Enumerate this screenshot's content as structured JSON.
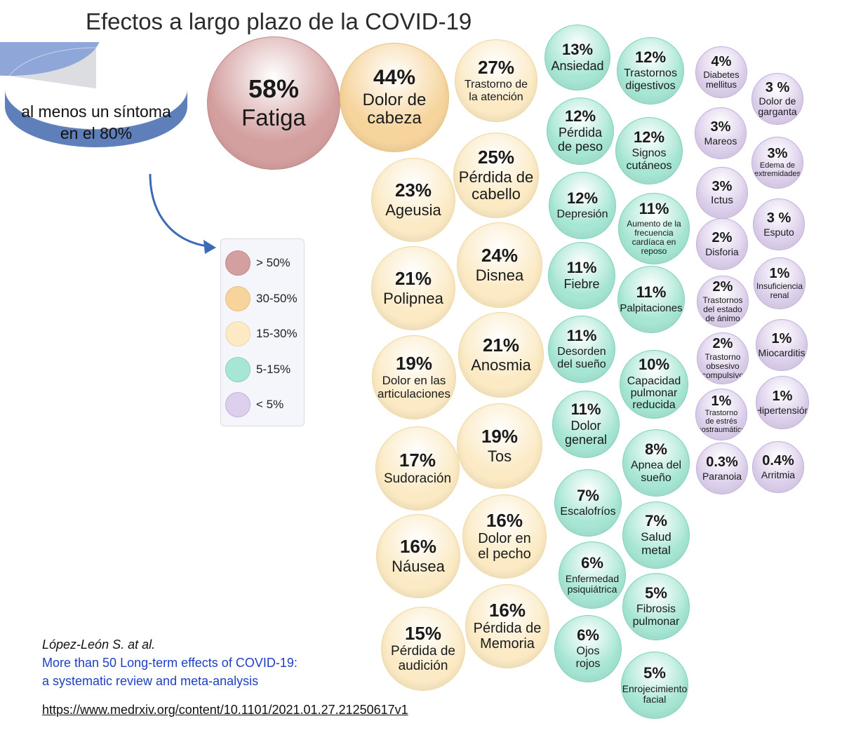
{
  "title": "Efectos a largo plazo de la COVID-19",
  "summary": {
    "label_line1": "al menos un síntoma",
    "label_line2": "en el 80%",
    "percent": 80
  },
  "legend": [
    {
      "label": "> 50%",
      "category": "cat_over50"
    },
    {
      "label": "30-50%",
      "category": "cat_30_50"
    },
    {
      "label": "15-30%",
      "category": "cat_15_30"
    },
    {
      "label": "5-15%",
      "category": "cat_5_15"
    },
    {
      "label": "< 5%",
      "category": "cat_under5"
    }
  ],
  "colors": {
    "cat_over50": {
      "fill": "#d49f9f",
      "stroke": "#c38a8a"
    },
    "cat_30_50": {
      "fill": "#f6d49c",
      "stroke": "#e9c07c"
    },
    "cat_15_30": {
      "fill": "#fbeac4",
      "stroke": "#efd8a1"
    },
    "cat_5_15": {
      "fill": "#a7e6d4",
      "stroke": "#7fd2ba"
    },
    "cat_under5": {
      "fill": "#ddd0ec",
      "stroke": "#c2b0de"
    },
    "pie_main": "#8ea6d8",
    "pie_side": "#5e7fba",
    "pie_rest": "#dcdde1",
    "pie_rest_side": "#b8b9be",
    "arrow": "#3d69b9"
  },
  "chart_data": {
    "type": "bubble",
    "title": "Efectos a largo plazo de la COVID-19",
    "points": [
      {
        "pct": "58%",
        "label": "Fatiga",
        "value": 58,
        "category": "cat_over50"
      },
      {
        "pct": "44%",
        "label": "Dolor de\ncabeza",
        "value": 44,
        "category": "cat_30_50"
      },
      {
        "pct": "27%",
        "label": "Trastorno de\nla atención",
        "value": 27,
        "category": "cat_15_30"
      },
      {
        "pct": "25%",
        "label": "Pérdida de\ncabello",
        "value": 25,
        "category": "cat_15_30"
      },
      {
        "pct": "23%",
        "label": "Ageusia",
        "value": 23,
        "category": "cat_15_30"
      },
      {
        "pct": "24%",
        "label": "Disnea",
        "value": 24,
        "category": "cat_15_30"
      },
      {
        "pct": "21%",
        "label": "Polipnea",
        "value": 21,
        "category": "cat_15_30"
      },
      {
        "pct": "21%",
        "label": "Anosmia",
        "value": 21,
        "category": "cat_15_30"
      },
      {
        "pct": "19%",
        "label": "Dolor en las\narticulaciones",
        "value": 19,
        "category": "cat_15_30"
      },
      {
        "pct": "19%",
        "label": "Tos",
        "value": 19,
        "category": "cat_15_30"
      },
      {
        "pct": "17%",
        "label": "Sudoración",
        "value": 17,
        "category": "cat_15_30"
      },
      {
        "pct": "16%",
        "label": "Dolor en\nel pecho",
        "value": 16,
        "category": "cat_15_30"
      },
      {
        "pct": "16%",
        "label": "Náusea",
        "value": 16,
        "category": "cat_15_30"
      },
      {
        "pct": "16%",
        "label": "Pérdida de\nMemoria",
        "value": 16,
        "category": "cat_15_30"
      },
      {
        "pct": "15%",
        "label": "Pérdida de\naudición",
        "value": 15,
        "category": "cat_15_30"
      },
      {
        "pct": "13%",
        "label": "Ansiedad",
        "value": 13,
        "category": "cat_5_15"
      },
      {
        "pct": "12%",
        "label": "Trastornos\ndigestivos",
        "value": 12,
        "category": "cat_5_15"
      },
      {
        "pct": "12%",
        "label": "Pérdida\nde peso",
        "value": 12,
        "category": "cat_5_15"
      },
      {
        "pct": "12%",
        "label": "Signos\ncutáneos",
        "value": 12,
        "category": "cat_5_15"
      },
      {
        "pct": "12%",
        "label": "Depresión",
        "value": 12,
        "category": "cat_5_15"
      },
      {
        "pct": "11%",
        "label": "Aumento de la\nfrecuencia\ncardíaca en\nreposo",
        "value": 11,
        "category": "cat_5_15"
      },
      {
        "pct": "11%",
        "label": "Fiebre",
        "value": 11,
        "category": "cat_5_15"
      },
      {
        "pct": "11%",
        "label": "Palpitaciones",
        "value": 11,
        "category": "cat_5_15"
      },
      {
        "pct": "11%",
        "label": "Desorden\ndel sueño",
        "value": 11,
        "category": "cat_5_15"
      },
      {
        "pct": "10%",
        "label": "Capacidad\npulmonar\nreducida",
        "value": 10,
        "category": "cat_5_15"
      },
      {
        "pct": "11%",
        "label": "Dolor\ngeneral",
        "value": 11,
        "category": "cat_5_15"
      },
      {
        "pct": "8%",
        "label": "Apnea del\nsueño",
        "value": 8,
        "category": "cat_5_15"
      },
      {
        "pct": "7%",
        "label": "Escalofríos",
        "value": 7,
        "category": "cat_5_15"
      },
      {
        "pct": "7%",
        "label": "Salud\nmetal",
        "value": 7,
        "category": "cat_5_15"
      },
      {
        "pct": "6%",
        "label": "Enfermedad\npsiquiátrica",
        "value": 6,
        "category": "cat_5_15"
      },
      {
        "pct": "5%",
        "label": "Fibrosis\npulmonar",
        "value": 5,
        "category": "cat_5_15"
      },
      {
        "pct": "6%",
        "label": "Ojos\nrojos",
        "value": 6,
        "category": "cat_5_15"
      },
      {
        "pct": "5%",
        "label": "Enrojecimiento\nfacial",
        "value": 5,
        "category": "cat_5_15"
      },
      {
        "pct": "4%",
        "label": "Diabetes\nmellitus",
        "value": 4,
        "category": "cat_under5"
      },
      {
        "pct": "3 %",
        "label": "Dolor de\ngarganta",
        "value": 3,
        "category": "cat_under5"
      },
      {
        "pct": "3%",
        "label": "Mareos",
        "value": 3,
        "category": "cat_under5"
      },
      {
        "pct": "3%",
        "label": "Edema de\nextremidades",
        "value": 3,
        "category": "cat_under5"
      },
      {
        "pct": "3%",
        "label": "Ictus",
        "value": 3,
        "category": "cat_under5"
      },
      {
        "pct": "3 %",
        "label": "Esputo",
        "value": 3,
        "category": "cat_under5"
      },
      {
        "pct": "2%",
        "label": "Disforia",
        "value": 2,
        "category": "cat_under5"
      },
      {
        "pct": "1%",
        "label": "Insuficiencia\nrenal",
        "value": 1,
        "category": "cat_under5"
      },
      {
        "pct": "2%",
        "label": "Trastornos\ndel estado\nde ánimo",
        "value": 2,
        "category": "cat_under5"
      },
      {
        "pct": "1%",
        "label": "Miocarditis",
        "value": 1,
        "category": "cat_under5"
      },
      {
        "pct": "2%",
        "label": "Trastorno\nobsesivo\ncompulsivo",
        "value": 2,
        "category": "cat_under5"
      },
      {
        "pct": "1%",
        "label": "Hipertensión",
        "value": 1,
        "category": "cat_under5"
      },
      {
        "pct": "1%",
        "label": "Trastorno\nde estrés\npostraumático",
        "value": 1,
        "category": "cat_under5"
      },
      {
        "pct": "0.3%",
        "label": "Paranoia",
        "value": 0.3,
        "category": "cat_under5"
      },
      {
        "pct": "0.4%",
        "label": "Arritmia",
        "value": 0.4,
        "category": "cat_under5"
      }
    ]
  },
  "citation": {
    "author": "López-León S. at al.",
    "title_line1": "More than 50 Long-term effects of COVID-19:",
    "title_line2": "a systematic review and meta-analysis",
    "url": "https://www.medrxiv.org/content/10.1101/2021.01.27.21250617v1"
  }
}
